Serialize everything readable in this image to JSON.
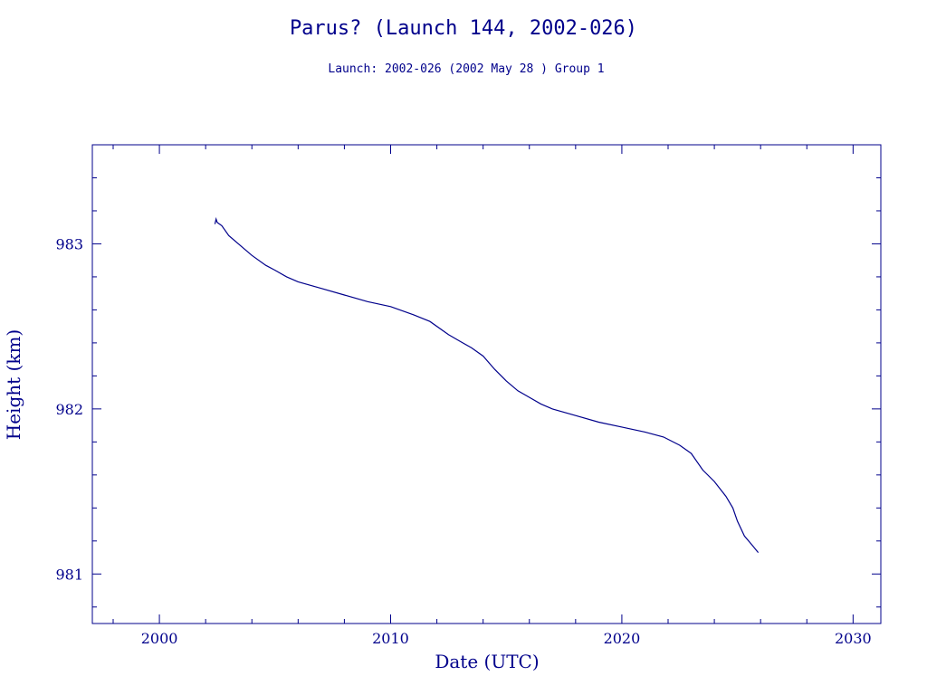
{
  "chart_data": {
    "type": "line",
    "title": "Parus? (Launch 144, 2002-026)",
    "subtitle": "Launch: 2002-026  (2002 May 28 )  Group 1",
    "xlabel": "Date (UTC)",
    "ylabel": "Height (km)",
    "xlim": [
      1997.1,
      2031.2
    ],
    "ylim": [
      980.7,
      983.6
    ],
    "x_ticks": [
      2000,
      2010,
      2020,
      2030
    ],
    "y_ticks": [
      981,
      982,
      983
    ],
    "grid": false,
    "color": "#00008b",
    "series": [
      {
        "x": [
          2002.4,
          2002.45,
          2002.5,
          2002.7,
          2003.0,
          2003.5,
          2004.0,
          2004.6,
          2005.0,
          2005.5,
          2006.0,
          2007.0,
          2008.0,
          2009.0,
          2010.0,
          2011.0,
          2011.7,
          2012.5,
          2013.0,
          2013.5,
          2014.0,
          2014.5,
          2015.0,
          2015.5,
          2016.0,
          2016.5,
          2017.0,
          2018.0,
          2019.0,
          2020.0,
          2021.0,
          2021.8,
          2022.5,
          2023.0,
          2023.5,
          2024.0,
          2024.5,
          2024.8,
          2025.0,
          2025.3,
          2025.6,
          2025.9
        ],
        "y": [
          983.12,
          983.15,
          983.13,
          983.11,
          983.05,
          982.99,
          982.93,
          982.87,
          982.84,
          982.8,
          982.77,
          982.73,
          982.69,
          982.65,
          982.62,
          982.57,
          982.53,
          982.45,
          982.41,
          982.37,
          982.32,
          982.24,
          982.17,
          982.11,
          982.07,
          982.03,
          982.0,
          981.96,
          981.92,
          981.89,
          981.86,
          981.83,
          981.78,
          981.73,
          981.63,
          981.56,
          981.47,
          981.4,
          981.32,
          981.23,
          981.18,
          981.13
        ]
      }
    ]
  }
}
